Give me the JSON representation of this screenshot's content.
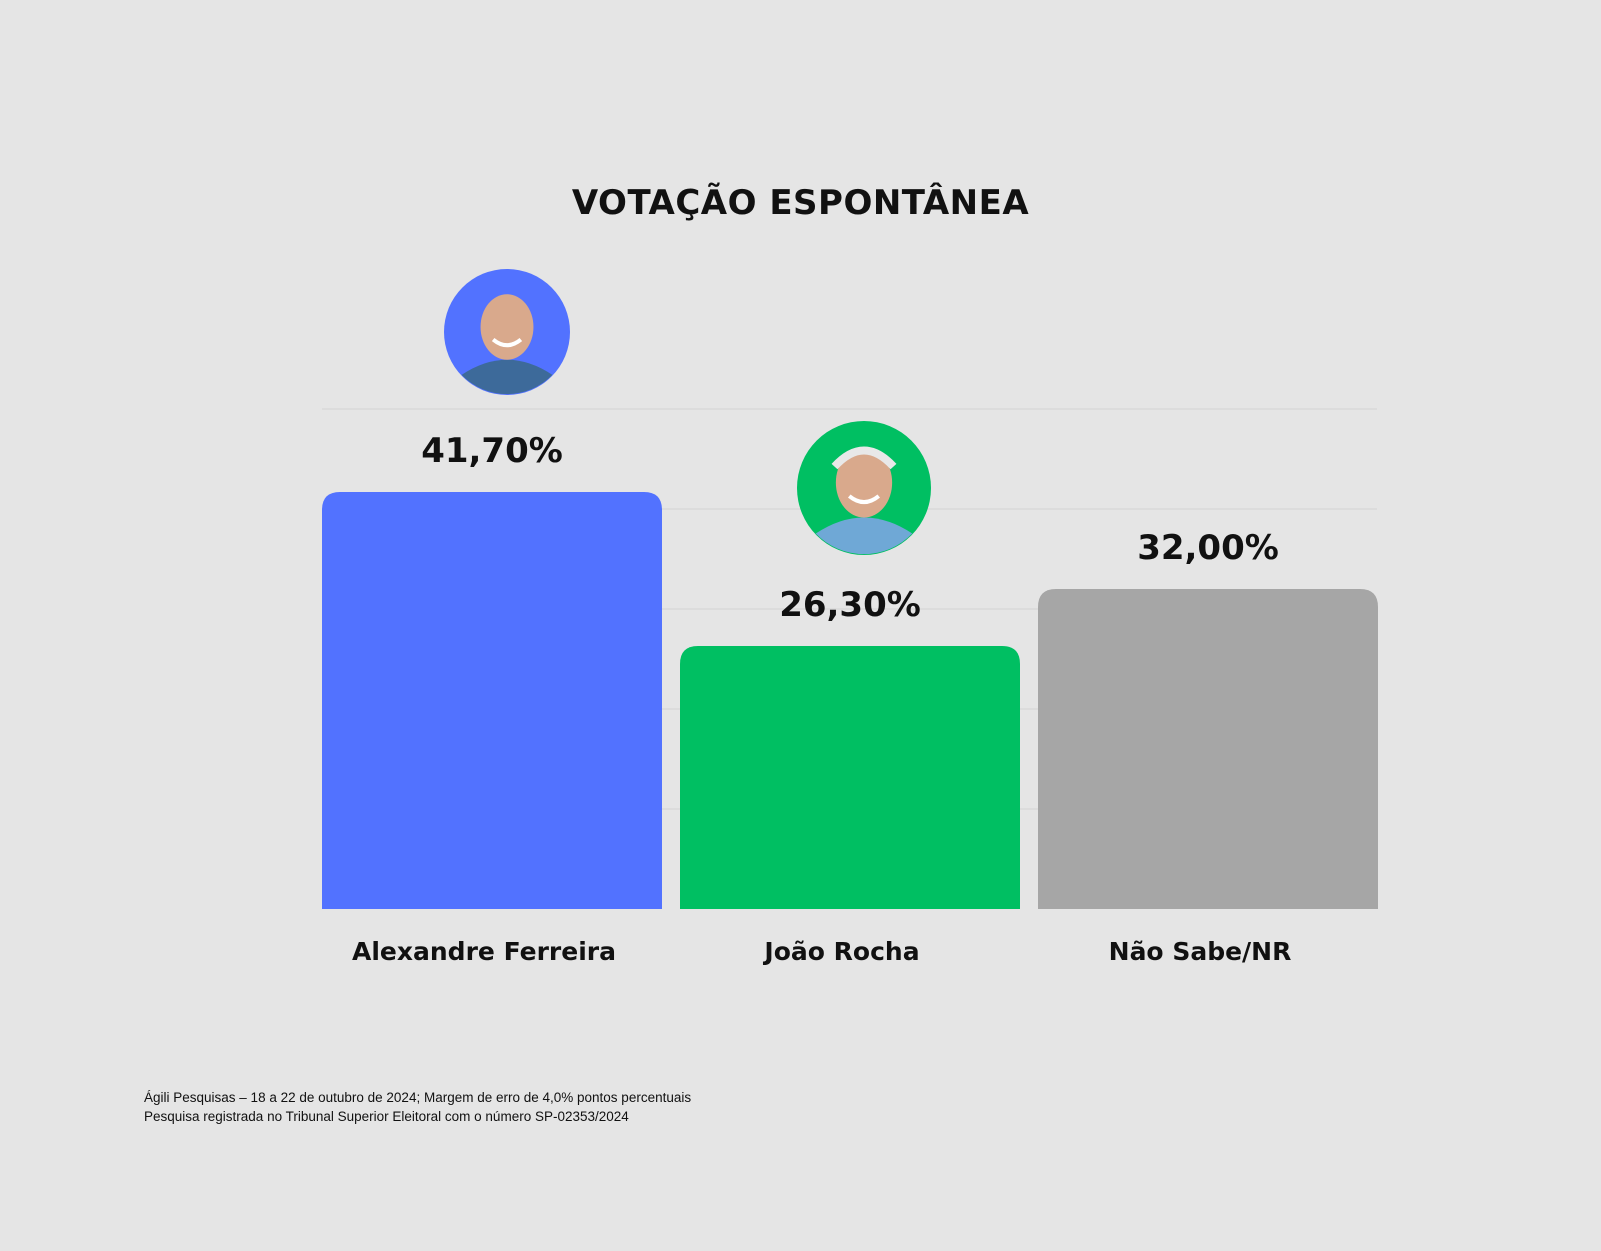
{
  "chart_data": {
    "type": "bar",
    "title": "VOTAÇÃO ESPONTÂNEA",
    "categories": [
      "Alexandre Ferreira",
      "João Rocha",
      "Não Sabe/NR"
    ],
    "values": [
      41.7,
      26.3,
      32.0
    ],
    "value_labels": [
      "41,70%",
      "26,30%",
      "32,00%"
    ],
    "colors": [
      "#5272ff",
      "#00bf62",
      "#a6a6a6"
    ],
    "avatars": [
      "person-photo",
      "person-photo",
      null
    ],
    "grid": true,
    "ylim": [
      0,
      50
    ],
    "xlabel": "",
    "ylabel": ""
  },
  "footnote": {
    "line1": "Ágili Pesquisas – 18 a 22 de outubro de 2024; Margem de erro de 4,0% pontos percentuais",
    "line2": "Pesquisa registrada no Tribunal Superior Eleitoral com o número SP-02353/2024"
  }
}
